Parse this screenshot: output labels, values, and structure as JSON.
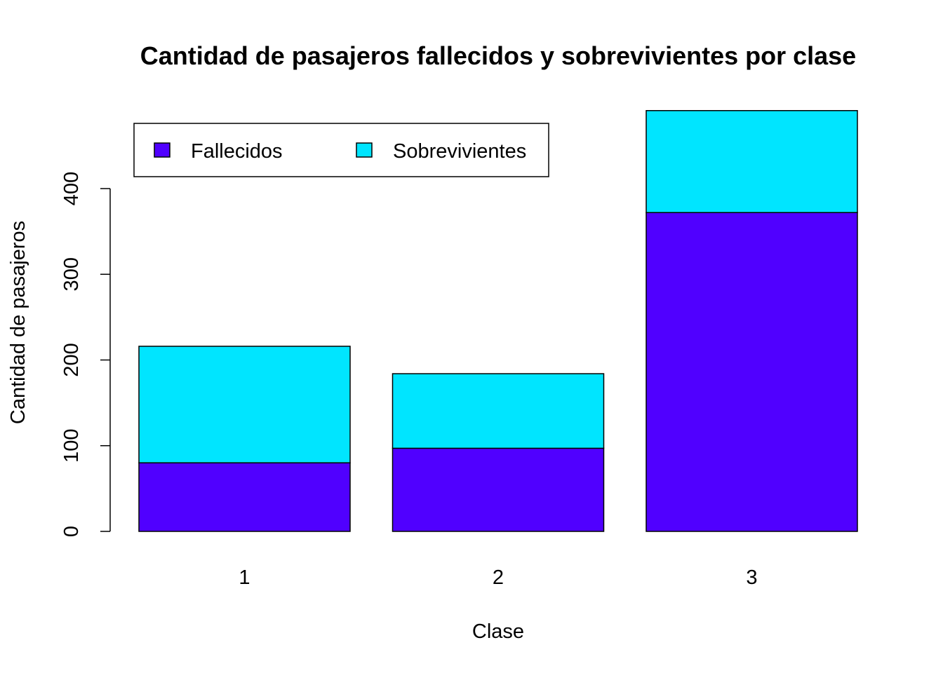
{
  "chart_data": {
    "type": "bar",
    "stacked": true,
    "title": "Cantidad de pasajeros fallecidos y sobrevivientes por clase",
    "xlabel": "Clase",
    "ylabel": "Cantidad de pasajeros",
    "categories": [
      "1",
      "2",
      "3"
    ],
    "series": [
      {
        "name": "Fallecidos",
        "values": [
          80,
          97,
          372
        ],
        "color": "#5000FF"
      },
      {
        "name": "Sobrevivientes",
        "values": [
          136,
          87,
          119
        ],
        "color": "#00E5FF"
      }
    ],
    "yticks": [
      0,
      100,
      200,
      300,
      400
    ],
    "ylim": [
      0,
      491
    ],
    "legend": {
      "placement": "top-left",
      "entries": [
        "Fallecidos",
        "Sobrevivientes"
      ]
    },
    "grid": false
  }
}
